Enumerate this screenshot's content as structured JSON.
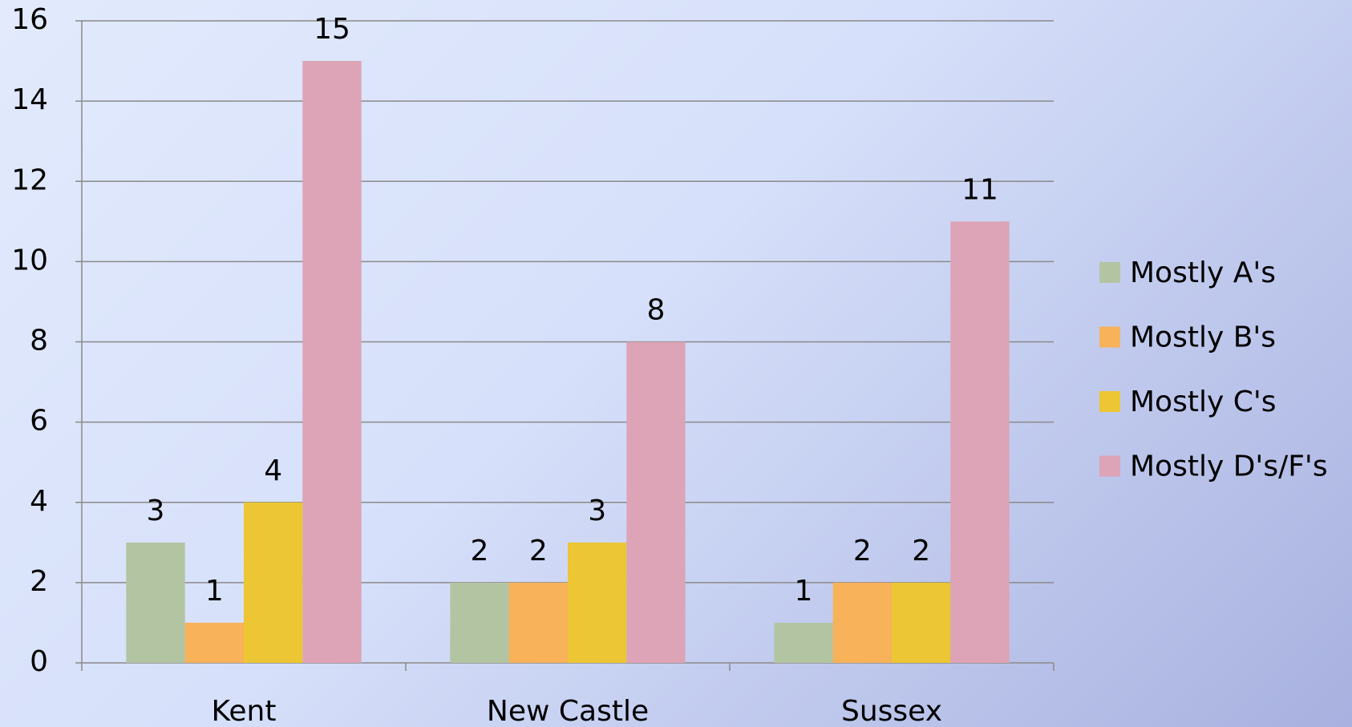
{
  "chart_data": {
    "type": "bar",
    "categories": [
      "Kent",
      "New Castle",
      "Sussex"
    ],
    "series": [
      {
        "name": "Mostly A's",
        "color": "#b3c4a2",
        "values": [
          3,
          2,
          1
        ]
      },
      {
        "name": "Mostly B's",
        "color": "#f7b25a",
        "values": [
          1,
          2,
          2
        ]
      },
      {
        "name": "Mostly C's",
        "color": "#ecc634",
        "values": [
          4,
          3,
          2
        ]
      },
      {
        "name": "Mostly D's/F's",
        "color": "#dca4b6",
        "values": [
          15,
          8,
          11
        ]
      }
    ],
    "ylim": [
      0,
      16
    ],
    "yticks": [
      0,
      2,
      4,
      6,
      8,
      10,
      12,
      14,
      16
    ],
    "grid": true,
    "legend": "right"
  }
}
